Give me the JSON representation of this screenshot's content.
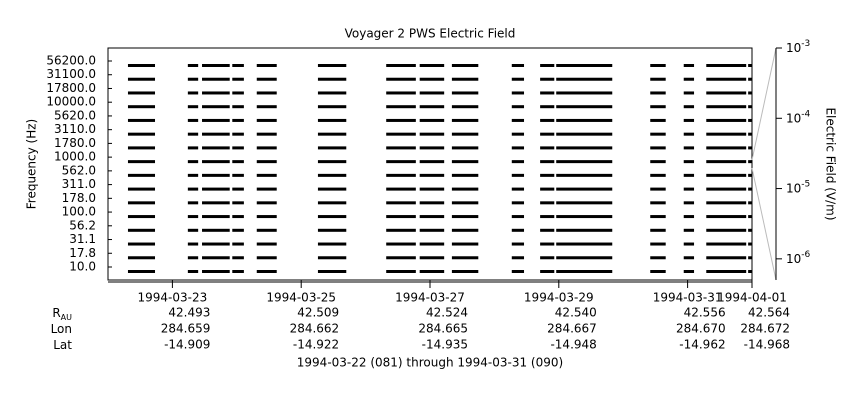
{
  "chart_data": {
    "type": "spectrum-coverage",
    "title": "Voyager 2 PWS Electric Field",
    "y_label": "Frequency (Hz)",
    "y2_label": "Electric Field (V/m)",
    "categories": [
      "10.0",
      "17.8",
      "31.1",
      "56.2",
      "100.0",
      "178.0",
      "311.0",
      "562.0",
      "1000.0",
      "1780.0",
      "3110.0",
      "5620.0",
      "10000.0",
      "17800.0",
      "31100.0",
      "56200.0"
    ],
    "xlim": [
      0,
      10
    ],
    "xticks": [
      {
        "value": 1,
        "label": "1994-03-23"
      },
      {
        "value": 3,
        "label": "1994-03-25"
      },
      {
        "value": 5,
        "label": "1994-03-27"
      },
      {
        "value": 7,
        "label": "1994-03-29"
      },
      {
        "value": 9,
        "label": "1994-03-31"
      },
      {
        "value": 10,
        "label": "1994-04-01"
      }
    ],
    "intervals": [
      [
        0.31,
        0.73
      ],
      [
        1.24,
        1.4
      ],
      [
        1.46,
        1.89
      ],
      [
        1.93,
        2.11
      ],
      [
        2.31,
        2.62
      ],
      [
        3.26,
        3.7
      ],
      [
        4.32,
        4.78
      ],
      [
        4.84,
        5.22
      ],
      [
        5.34,
        5.75
      ],
      [
        6.27,
        6.46
      ],
      [
        6.71,
        6.93
      ],
      [
        6.96,
        7.83
      ],
      [
        8.42,
        8.66
      ],
      [
        8.94,
        9.1
      ],
      [
        9.29,
        9.91
      ],
      [
        9.94,
        10.0
      ]
    ],
    "color": "#000000",
    "y2_log": true,
    "y2lim": [
      5e-07,
      0.001
    ],
    "y2ticks": [
      {
        "value": 0.001,
        "label": "10",
        "exponent": "-3"
      },
      {
        "value": 0.0001,
        "label": "10",
        "exponent": "-4"
      },
      {
        "value": 1e-05,
        "label": "10",
        "exponent": "-5"
      },
      {
        "value": 1e-06,
        "label": "10",
        "exponent": "-6"
      }
    ],
    "ephemeris": [
      {
        "label": "R",
        "sub": "AU",
        "values": [
          "42.493",
          "42.509",
          "42.524",
          "42.540",
          "42.556",
          "42.564"
        ]
      },
      {
        "label": "Lon",
        "values": [
          "284.659",
          "284.662",
          "284.665",
          "284.667",
          "284.670",
          "284.672"
        ]
      },
      {
        "label": "Lat",
        "values": [
          "-14.909",
          "-14.922",
          "-14.935",
          "-14.948",
          "-14.962",
          "-14.968"
        ]
      }
    ],
    "footer": "1994-03-22 (081) through 1994-03-31 (090)"
  }
}
